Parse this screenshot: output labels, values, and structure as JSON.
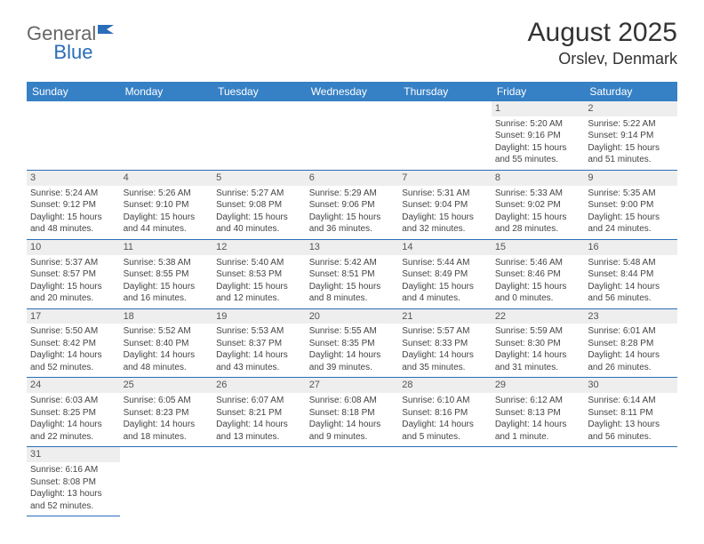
{
  "logo": {
    "general": "General",
    "blue": "Blue"
  },
  "header": {
    "month_title": "August 2025",
    "location": "Orslev, Denmark"
  },
  "colors": {
    "header_bg": "#3680c5",
    "header_fg": "#ffffff",
    "rule": "#2a6db8",
    "daynum_bg": "#eeeeee",
    "text": "#444444",
    "logo_gray": "#666666",
    "logo_blue": "#2a6db8"
  },
  "weekdays": [
    "Sunday",
    "Monday",
    "Tuesday",
    "Wednesday",
    "Thursday",
    "Friday",
    "Saturday"
  ],
  "days": {
    "1": {
      "sunrise": "5:20 AM",
      "sunset": "9:16 PM",
      "daylight": "15 hours and 55 minutes."
    },
    "2": {
      "sunrise": "5:22 AM",
      "sunset": "9:14 PM",
      "daylight": "15 hours and 51 minutes."
    },
    "3": {
      "sunrise": "5:24 AM",
      "sunset": "9:12 PM",
      "daylight": "15 hours and 48 minutes."
    },
    "4": {
      "sunrise": "5:26 AM",
      "sunset": "9:10 PM",
      "daylight": "15 hours and 44 minutes."
    },
    "5": {
      "sunrise": "5:27 AM",
      "sunset": "9:08 PM",
      "daylight": "15 hours and 40 minutes."
    },
    "6": {
      "sunrise": "5:29 AM",
      "sunset": "9:06 PM",
      "daylight": "15 hours and 36 minutes."
    },
    "7": {
      "sunrise": "5:31 AM",
      "sunset": "9:04 PM",
      "daylight": "15 hours and 32 minutes."
    },
    "8": {
      "sunrise": "5:33 AM",
      "sunset": "9:02 PM",
      "daylight": "15 hours and 28 minutes."
    },
    "9": {
      "sunrise": "5:35 AM",
      "sunset": "9:00 PM",
      "daylight": "15 hours and 24 minutes."
    },
    "10": {
      "sunrise": "5:37 AM",
      "sunset": "8:57 PM",
      "daylight": "15 hours and 20 minutes."
    },
    "11": {
      "sunrise": "5:38 AM",
      "sunset": "8:55 PM",
      "daylight": "15 hours and 16 minutes."
    },
    "12": {
      "sunrise": "5:40 AM",
      "sunset": "8:53 PM",
      "daylight": "15 hours and 12 minutes."
    },
    "13": {
      "sunrise": "5:42 AM",
      "sunset": "8:51 PM",
      "daylight": "15 hours and 8 minutes."
    },
    "14": {
      "sunrise": "5:44 AM",
      "sunset": "8:49 PM",
      "daylight": "15 hours and 4 minutes."
    },
    "15": {
      "sunrise": "5:46 AM",
      "sunset": "8:46 PM",
      "daylight": "15 hours and 0 minutes."
    },
    "16": {
      "sunrise": "5:48 AM",
      "sunset": "8:44 PM",
      "daylight": "14 hours and 56 minutes."
    },
    "17": {
      "sunrise": "5:50 AM",
      "sunset": "8:42 PM",
      "daylight": "14 hours and 52 minutes."
    },
    "18": {
      "sunrise": "5:52 AM",
      "sunset": "8:40 PM",
      "daylight": "14 hours and 48 minutes."
    },
    "19": {
      "sunrise": "5:53 AM",
      "sunset": "8:37 PM",
      "daylight": "14 hours and 43 minutes."
    },
    "20": {
      "sunrise": "5:55 AM",
      "sunset": "8:35 PM",
      "daylight": "14 hours and 39 minutes."
    },
    "21": {
      "sunrise": "5:57 AM",
      "sunset": "8:33 PM",
      "daylight": "14 hours and 35 minutes."
    },
    "22": {
      "sunrise": "5:59 AM",
      "sunset": "8:30 PM",
      "daylight": "14 hours and 31 minutes."
    },
    "23": {
      "sunrise": "6:01 AM",
      "sunset": "8:28 PM",
      "daylight": "14 hours and 26 minutes."
    },
    "24": {
      "sunrise": "6:03 AM",
      "sunset": "8:25 PM",
      "daylight": "14 hours and 22 minutes."
    },
    "25": {
      "sunrise": "6:05 AM",
      "sunset": "8:23 PM",
      "daylight": "14 hours and 18 minutes."
    },
    "26": {
      "sunrise": "6:07 AM",
      "sunset": "8:21 PM",
      "daylight": "14 hours and 13 minutes."
    },
    "27": {
      "sunrise": "6:08 AM",
      "sunset": "8:18 PM",
      "daylight": "14 hours and 9 minutes."
    },
    "28": {
      "sunrise": "6:10 AM",
      "sunset": "8:16 PM",
      "daylight": "14 hours and 5 minutes."
    },
    "29": {
      "sunrise": "6:12 AM",
      "sunset": "8:13 PM",
      "daylight": "14 hours and 1 minute."
    },
    "30": {
      "sunrise": "6:14 AM",
      "sunset": "8:11 PM",
      "daylight": "13 hours and 56 minutes."
    },
    "31": {
      "sunrise": "6:16 AM",
      "sunset": "8:08 PM",
      "daylight": "13 hours and 52 minutes."
    }
  },
  "labels": {
    "sunrise": "Sunrise: ",
    "sunset": "Sunset: ",
    "daylight": "Daylight: "
  },
  "layout": {
    "first_weekday_index": 5,
    "num_days": 31
  }
}
